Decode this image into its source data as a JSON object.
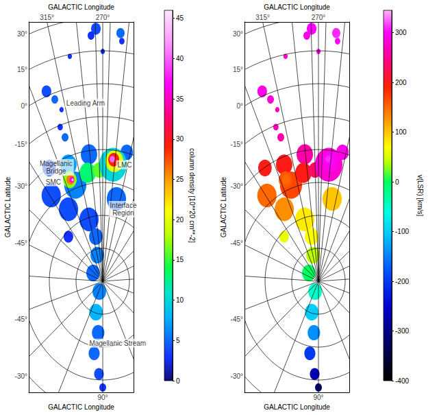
{
  "chart_data": [
    {
      "type": "sky_map",
      "x_label": "GALACTIC Longitude",
      "y_label": "GALACTIC Latitude",
      "lon_ticks_top": [
        {
          "value": 315,
          "label": "315°"
        },
        {
          "value": 270,
          "label": "270°"
        }
      ],
      "lon_ticks_bottom": [
        {
          "value": 90,
          "label": "90°"
        }
      ],
      "lat_ticks_upper": [
        {
          "value": 30,
          "label": "30°"
        },
        {
          "value": 15,
          "label": "15°"
        },
        {
          "value": 0,
          "label": "0°"
        },
        {
          "value": -15,
          "label": "-15°"
        },
        {
          "value": -30,
          "label": "-30°"
        },
        {
          "value": -45,
          "label": "-45°"
        }
      ],
      "lat_ticks_lower": [
        {
          "value": -45,
          "label": "-45°"
        },
        {
          "value": -30,
          "label": "-30°"
        }
      ],
      "lon_grid": [
        0,
        15,
        30,
        45,
        60,
        75,
        90,
        105,
        120,
        135,
        150,
        165,
        180,
        195,
        210,
        225,
        240,
        255,
        270,
        285,
        300,
        315,
        330,
        345
      ],
      "lat_grid": [
        -75,
        -60,
        -45,
        -30,
        -15,
        0,
        15,
        30
      ],
      "clouds": {
        "l": [
          284.4,
          289.7,
          245.3,
          243.8,
          270,
          306.6,
          323.2,
          320.1,
          317.7,
          321.3,
          319.9,
          344.2,
          337.0,
          336.8,
          301.0,
          228.3,
          230.8,
          315.8,
          322.2,
          323.0,
          305.6,
          285.5,
          242.3,
          240.8,
          241.9,
          244.0,
          325.7,
          325.1,
          323.9,
          323.3,
          351.8,
          307.6,
          314.5,
          3.4,
          77.4,
          81.5,
          86.5,
          85.3,
          88.4,
          90
        ],
        "b": [
          25.1,
          22.1,
          23.5,
          19.9,
          14.7,
          14.1,
          2.1,
          -2.9,
          -8.5,
          -15.8,
          -21.1,
          -41.4,
          -52.0,
          -30.3,
          -31.7,
          -29.7,
          -51.7,
          -60.8,
          -43.6,
          -33.5,
          -39.9,
          -39.3,
          -36.6,
          -34.9,
          -34.3,
          -34.1,
          -40.2,
          -40.3,
          -40.6,
          -40.8,
          -62.0,
          -69.3,
          -77.7,
          -83.4,
          -84.9,
          -75.4,
          -66.4,
          -56.8,
          -47.7,
          -41.6
        ],
        "radius": [
          2.7,
          1.9,
          2.3,
          1.5,
          1.2,
          1.2,
          2.7,
          1.9,
          1.2,
          1.5,
          1.9,
          5.4,
          5.4,
          3.8,
          4.6,
          3.5,
          5.4,
          5.4,
          6.2,
          4.6,
          4.6,
          3.5,
          7.7,
          5.0,
          3.1,
          1.5,
          3.8,
          2.3,
          1.3,
          0.6,
          2.7,
          3.8,
          3.8,
          3.8,
          3.8,
          3.8,
          3.5,
          3.1,
          2.7,
          1.9
        ],
        "values": [
          4,
          3,
          5,
          3,
          3,
          3,
          4,
          5,
          3,
          3,
          5,
          4,
          4,
          4,
          5,
          5,
          5,
          4,
          6,
          7,
          13,
          16,
          10,
          20,
          29,
          40,
          17,
          26,
          36,
          45,
          3,
          5,
          6,
          5,
          6,
          8,
          5,
          5,
          4,
          3
        ]
      },
      "colorbar": {
        "label": "column density [10**20 cm**-2]",
        "range": [
          0,
          46
        ],
        "ticks": [
          0,
          5,
          10,
          15,
          20,
          25,
          30,
          35,
          40,
          45
        ]
      },
      "annotations": [
        {
          "text": "Leading Arm",
          "l": 299.1,
          "b": -8.2
        },
        {
          "text": "Magellanic Bridge",
          "l": 332.5,
          "b": -31.9
        },
        {
          "text": "LMC",
          "l": 228.1,
          "b": -35.5
        },
        {
          "text": "SMC",
          "l": 338.3,
          "b": -36.9
        },
        {
          "text": "Interface Region",
          "l": 217.8,
          "b": -55.2
        },
        {
          "text": "Magellanic Stream",
          "l": 99.4,
          "b": -60.6
        }
      ]
    },
    {
      "type": "sky_map",
      "x_label": "GALACTIC Longitude",
      "y_label": "GALACTIC Latitude",
      "lon_ticks_top": [
        {
          "value": 315,
          "label": "315°"
        },
        {
          "value": 270,
          "label": "270°"
        }
      ],
      "lon_ticks_bottom": [
        {
          "value": 90,
          "label": "90°"
        }
      ],
      "lat_ticks_upper": [
        {
          "value": 30,
          "label": "30°"
        },
        {
          "value": 15,
          "label": "15°"
        },
        {
          "value": 0,
          "label": "0°"
        },
        {
          "value": -15,
          "label": "-15°"
        },
        {
          "value": -30,
          "label": "-30°"
        },
        {
          "value": -45,
          "label": "-45°"
        }
      ],
      "lat_ticks_lower": [
        {
          "value": -45,
          "label": "-45°"
        },
        {
          "value": -30,
          "label": "-30°"
        }
      ],
      "lon_grid": [
        0,
        15,
        30,
        45,
        60,
        75,
        90,
        105,
        120,
        135,
        150,
        165,
        180,
        195,
        210,
        225,
        240,
        255,
        270,
        285,
        300,
        315,
        330,
        345
      ],
      "lat_grid": [
        -75,
        -60,
        -45,
        -30,
        -15,
        0,
        15,
        30
      ],
      "clouds": {
        "l": [
          284.4,
          289.7,
          245.3,
          243.8,
          270,
          306.6,
          323.2,
          320.1,
          317.7,
          321.3,
          319.9,
          344.2,
          337.0,
          336.8,
          301.0,
          228.3,
          230.8,
          315.8,
          322.2,
          323.0,
          305.6,
          285.5,
          242.3,
          240.8,
          241.9,
          244.0,
          325.7,
          325.1,
          323.9,
          323.3,
          351.8,
          307.6,
          314.5,
          3.4,
          77.4,
          81.5,
          86.5,
          85.3,
          88.4,
          90
        ],
        "b": [
          25.1,
          22.1,
          23.5,
          19.9,
          14.7,
          14.1,
          2.1,
          -2.9,
          -8.5,
          -15.8,
          -21.1,
          -41.4,
          -52.0,
          -30.3,
          -31.7,
          -29.7,
          -51.7,
          -60.8,
          -43.6,
          -33.5,
          -39.9,
          -39.3,
          -36.6,
          -34.9,
          -34.3,
          -34.1,
          -40.2,
          -40.3,
          -40.6,
          -40.8,
          -62.0,
          -69.3,
          -77.7,
          -83.4,
          -84.9,
          -75.4,
          -66.4,
          -56.8,
          -47.7,
          -41.6
        ],
        "radius": [
          2.7,
          1.9,
          2.3,
          1.5,
          1.2,
          1.2,
          2.7,
          1.9,
          1.2,
          1.5,
          1.9,
          5.4,
          5.4,
          3.8,
          4.6,
          3.5,
          5.4,
          5.4,
          6.2,
          4.6,
          4.6,
          3.5,
          7.7,
          5.0,
          3.1,
          1.5,
          3.8,
          2.3,
          1.3,
          0.6,
          2.7,
          3.8,
          3.8,
          3.8,
          3.8,
          3.8,
          3.5,
          3.1,
          2.7,
          1.9
        ],
        "values": [
          300,
          290,
          310,
          300,
          290,
          280,
          290,
          280,
          270,
          270,
          260,
          150,
          130,
          200,
          260,
          290,
          100,
          80,
          170,
          200,
          200,
          230,
          280,
          290,
          300,
          310,
          160,
          150,
          150,
          150,
          60,
          70,
          40,
          0,
          -50,
          -100,
          -140,
          -200,
          -270,
          -320
        ]
      },
      "colorbar": {
        "label": "v(LSR) [km/s]",
        "range": [
          -400,
          345
        ],
        "ticks": [
          -400,
          -300,
          -200,
          -100,
          0,
          100,
          200,
          300
        ]
      }
    }
  ]
}
